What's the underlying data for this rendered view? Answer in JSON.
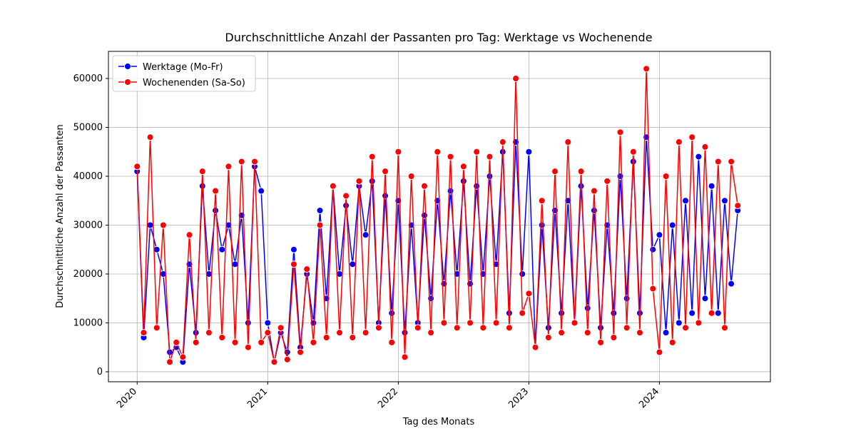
{
  "chart_data": {
    "type": "line",
    "title": "Durchschnittliche Anzahl der Passanten pro Tag: Werktage vs Wochenende",
    "xlabel": "Tag des Monats",
    "ylabel": "Durchschnittliche Anzahl der Passanten",
    "x": [
      2020.0,
      2020.05,
      2020.1,
      2020.15,
      2020.2,
      2020.25,
      2020.3,
      2020.35,
      2020.4,
      2020.45,
      2020.5,
      2020.55,
      2020.6,
      2020.65,
      2020.7,
      2020.75,
      2020.8,
      2020.85,
      2020.9,
      2020.95,
      2021.0,
      2021.05,
      2021.1,
      2021.15,
      2021.2,
      2021.25,
      2021.3,
      2021.35,
      2021.4,
      2021.45,
      2021.5,
      2021.55,
      2021.6,
      2021.65,
      2021.7,
      2021.75,
      2021.8,
      2021.85,
      2021.9,
      2021.95,
      2022.0,
      2022.05,
      2022.1,
      2022.15,
      2022.2,
      2022.25,
      2022.3,
      2022.35,
      2022.4,
      2022.45,
      2022.5,
      2022.55,
      2022.6,
      2022.65,
      2022.7,
      2022.75,
      2022.8,
      2022.85,
      2022.9,
      2022.95,
      2023.0,
      2023.05,
      2023.1,
      2023.15,
      2023.2,
      2023.25,
      2023.3,
      2023.35,
      2023.4,
      2023.45,
      2023.5,
      2023.55,
      2023.6,
      2023.65,
      2023.7,
      2023.75,
      2023.8,
      2023.85,
      2023.9,
      2023.95,
      2024.0,
      2024.05,
      2024.1,
      2024.15,
      2024.2,
      2024.25,
      2024.3,
      2024.35,
      2024.4,
      2024.45,
      2024.5,
      2024.55,
      2024.6
    ],
    "series": [
      {
        "name": "Werktage (Mo-Fr)",
        "color": "#0000ff",
        "values": [
          41000,
          7000,
          30000,
          25000,
          20000,
          4000,
          5000,
          2000,
          22000,
          8000,
          38000,
          20000,
          33000,
          25000,
          30000,
          22000,
          32000,
          10000,
          42000,
          37000,
          10000,
          2000,
          8000,
          4000,
          25000,
          5000,
          20000,
          10000,
          33000,
          15000,
          38000,
          20000,
          34000,
          22000,
          38000,
          28000,
          39000,
          10000,
          36000,
          12000,
          35000,
          8000,
          30000,
          10000,
          32000,
          15000,
          35000,
          18000,
          37000,
          20000,
          39000,
          18000,
          38000,
          20000,
          40000,
          22000,
          45000,
          12000,
          47000,
          20000,
          45000,
          5000,
          30000,
          9000,
          33000,
          12000,
          35000,
          10000,
          38000,
          13000,
          33000,
          9000,
          30000,
          12000,
          40000,
          15000,
          43000,
          12000,
          48000,
          25000,
          28000,
          8000,
          30000,
          10000,
          35000,
          12000,
          44000,
          15000,
          38000,
          12000,
          35000,
          18000,
          33000
        ]
      },
      {
        "name": "Wochenenden (Sa-So)",
        "color": "#ff0000",
        "values": [
          42000,
          8000,
          48000,
          9000,
          30000,
          2000,
          6000,
          3000,
          28000,
          6000,
          41000,
          8000,
          37000,
          7000,
          42000,
          6000,
          43000,
          5000,
          43000,
          6000,
          8000,
          2000,
          9000,
          2500,
          22000,
          4000,
          21000,
          6000,
          30000,
          7000,
          38000,
          8000,
          36000,
          7000,
          39000,
          8000,
          44000,
          9000,
          41000,
          6000,
          45000,
          3000,
          40000,
          9000,
          38000,
          8000,
          45000,
          10000,
          44000,
          9000,
          42000,
          10000,
          45000,
          9000,
          44000,
          10000,
          47000,
          9000,
          60000,
          12000,
          16000,
          5000,
          35000,
          7000,
          41000,
          8000,
          47000,
          10000,
          41000,
          8000,
          37000,
          6000,
          39000,
          7000,
          49000,
          9000,
          45000,
          8000,
          62000,
          17000,
          4000,
          40000,
          6000,
          47000,
          9000,
          48000,
          10000,
          46000,
          12000,
          43000,
          9000,
          43000,
          34000
        ]
      }
    ],
    "xlim": [
      2019.78,
      2024.85
    ],
    "xticks": [
      2020,
      2021,
      2022,
      2023,
      2024
    ],
    "ylim": [
      -2050,
      65550
    ],
    "yticks": [
      0,
      10000,
      20000,
      30000,
      40000,
      50000,
      60000
    ],
    "grid": true,
    "legend": "upper left"
  }
}
